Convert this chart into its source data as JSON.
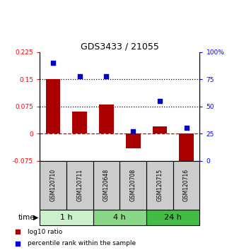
{
  "title": "GDS3433 / 21055",
  "samples": [
    "GSM120710",
    "GSM120711",
    "GSM120648",
    "GSM120708",
    "GSM120715",
    "GSM120716"
  ],
  "log10_ratio": [
    0.15,
    0.06,
    0.08,
    -0.04,
    0.02,
    -0.082
  ],
  "percentile_rank": [
    90,
    78,
    78,
    27,
    55,
    30
  ],
  "groups": [
    {
      "label": "1 h",
      "indices": [
        0,
        1
      ],
      "color": "#ccf0cc"
    },
    {
      "label": "4 h",
      "indices": [
        2,
        3
      ],
      "color": "#88d888"
    },
    {
      "label": "24 h",
      "indices": [
        4,
        5
      ],
      "color": "#44bb44"
    }
  ],
  "bar_color": "#aa0000",
  "dot_color": "#0000cc",
  "ylim_left": [
    -0.075,
    0.225
  ],
  "ylim_right": [
    0,
    100
  ],
  "yticks_left": [
    -0.075,
    0,
    0.075,
    0.15,
    0.225
  ],
  "yticks_right": [
    0,
    25,
    50,
    75,
    100
  ],
  "hlines": [
    0.075,
    0.15
  ],
  "dashed_zero_color": "#cc0000",
  "background_color": "#ffffff",
  "time_label": "time",
  "legend": [
    {
      "label": "log10 ratio",
      "color": "#aa0000"
    },
    {
      "label": "percentile rank within the sample",
      "color": "#0000cc"
    }
  ]
}
